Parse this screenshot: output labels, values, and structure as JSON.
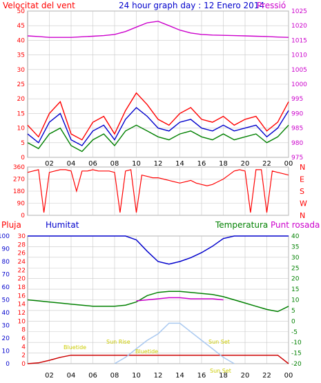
{
  "title": "24 hour graph day : 12 Enero 2014",
  "hours": [
    "02",
    "04",
    "06",
    "08",
    "10",
    "12",
    "14",
    "16",
    "18",
    "20",
    "22",
    "00"
  ],
  "colors": {
    "red": "#ff0000",
    "magenta": "#cc00cc",
    "blue": "#0000cc",
    "green": "#008000",
    "darkred": "#cc0000",
    "lightblue": "#a8c8f0",
    "yellow": "#cccc00",
    "grid": "#c8c8c8"
  },
  "chart_data": [
    {
      "type": "line",
      "panel": "wind-pressure",
      "labels": {
        "left": "Velocitat del vent",
        "right": "Pressió"
      },
      "left_ticks": [
        "0",
        "5",
        "10",
        "15",
        "20",
        "25",
        "30",
        "35",
        "40",
        "45",
        "50"
      ],
      "right_ticks": [
        "975",
        "980",
        "985",
        "990",
        "995",
        "1000",
        "1005",
        "1010",
        "1015",
        "1020",
        "1025"
      ],
      "ylim_left": [
        0,
        50
      ],
      "ylim_right": [
        975,
        1025
      ],
      "x": [
        0,
        1,
        2,
        3,
        4,
        5,
        6,
        7,
        8,
        9,
        10,
        11,
        12,
        13,
        14,
        15,
        16,
        17,
        18,
        19,
        20,
        21,
        22,
        23,
        24
      ],
      "series": [
        {
          "color": "red",
          "values": [
            11,
            7,
            15,
            19,
            8,
            6,
            12,
            14,
            8,
            16,
            22,
            18,
            13,
            11,
            15,
            17,
            13,
            12,
            14,
            11,
            13,
            14,
            9,
            12,
            19
          ]
        },
        {
          "color": "blue",
          "values": [
            8,
            5,
            12,
            15,
            6,
            4,
            9,
            11,
            6,
            13,
            17,
            14,
            10,
            9,
            12,
            13,
            10,
            9,
            11,
            9,
            10,
            11,
            7,
            10,
            16
          ]
        },
        {
          "color": "green",
          "values": [
            5,
            3,
            8,
            10,
            4,
            2,
            6,
            8,
            4,
            9,
            11,
            9,
            7,
            6,
            8,
            9,
            7,
            6,
            8,
            6,
            7,
            8,
            5,
            7,
            11
          ]
        },
        {
          "color": "magenta",
          "axis": "right",
          "values": [
            1016.5,
            1016.3,
            1016,
            1016,
            1016,
            1016.2,
            1016.4,
            1016.6,
            1017,
            1018,
            1019.5,
            1021,
            1021.5,
            1020,
            1018.5,
            1017.5,
            1017,
            1016.8,
            1016.7,
            1016.6,
            1016.5,
            1016.4,
            1016.3,
            1016.1,
            1016
          ]
        }
      ]
    },
    {
      "type": "scatter",
      "panel": "wind-direction",
      "left_ticks": [
        "0",
        "90",
        "180",
        "270",
        "360"
      ],
      "right_labels": [
        "N",
        "W",
        "S",
        "E",
        "N"
      ],
      "ylim": [
        0,
        360
      ],
      "x": [
        0,
        0.5,
        1,
        1.5,
        2,
        2.5,
        3,
        3.5,
        4,
        4.5,
        5,
        5.5,
        6,
        6.5,
        7,
        7.5,
        8,
        8.5,
        9,
        9.5,
        10,
        10.5,
        11,
        11.5,
        12,
        12.5,
        13,
        13.5,
        14,
        14.5,
        15,
        15.5,
        16,
        16.5,
        17,
        17.5,
        18,
        18.5,
        19,
        19.5,
        20,
        20.5,
        21,
        21.5,
        22,
        22.5,
        23,
        23.5,
        24
      ],
      "values": [
        320,
        330,
        340,
        20,
        320,
        330,
        340,
        340,
        330,
        180,
        330,
        330,
        340,
        330,
        330,
        330,
        320,
        20,
        330,
        340,
        20,
        300,
        290,
        280,
        280,
        270,
        260,
        250,
        240,
        250,
        260,
        240,
        230,
        220,
        230,
        250,
        270,
        300,
        330,
        340,
        330,
        20,
        340,
        340,
        20,
        330,
        320,
        310,
        300
      ]
    },
    {
      "type": "line",
      "panel": "rain-humidity-temperature",
      "labels": {
        "left": "Pluja",
        "center": "Humitat",
        "right1": "Temperatura",
        "right2": "Punt rosada"
      },
      "left_ticks": [
        "0",
        "10",
        "20",
        "30",
        "40",
        "50",
        "60",
        "70",
        "80",
        "90",
        "100"
      ],
      "inner_ticks": [
        "0",
        "2",
        "4",
        "6",
        "8",
        "10",
        "12",
        "14",
        "16",
        "18",
        "20",
        "22",
        "24",
        "26",
        "28",
        "30"
      ],
      "right_ticks": [
        "-20",
        "-15",
        "-10",
        "-5",
        "0",
        "5",
        "10",
        "15",
        "20",
        "25",
        "30",
        "35",
        "40"
      ],
      "ylim_inner": [
        0,
        30
      ],
      "ylim_right": [
        -20,
        40
      ],
      "ylim_left": [
        0,
        100
      ],
      "annotations": [
        "Bluetide",
        "Sun Rise",
        "Bluetide",
        "Sun Set",
        "Sun Set"
      ],
      "x": [
        0,
        1,
        2,
        3,
        4,
        5,
        6,
        7,
        8,
        9,
        10,
        11,
        12,
        13,
        14,
        15,
        16,
        17,
        18,
        19,
        20,
        21,
        22,
        23,
        24
      ],
      "series": [
        {
          "color": "blue",
          "axis": "left",
          "values": [
            100,
            100,
            100,
            100,
            100,
            100,
            100,
            100,
            100,
            100,
            97,
            88,
            80,
            78,
            80,
            83,
            87,
            92,
            98,
            100,
            100,
            100,
            100,
            100,
            100
          ]
        },
        {
          "color": "green",
          "axis": "right",
          "values": [
            10,
            9.5,
            9,
            8.5,
            8,
            7.5,
            7,
            7,
            7,
            7.5,
            9,
            12,
            13.5,
            14,
            14,
            13.5,
            13,
            12.5,
            11.5,
            10,
            8.5,
            7,
            5.5,
            4.5,
            7
          ]
        },
        {
          "color": "magenta",
          "axis": "right",
          "values": [
            null,
            null,
            null,
            null,
            null,
            null,
            null,
            null,
            null,
            null,
            9.5,
            10,
            10.5,
            11,
            11,
            10.5,
            10.5,
            10.5,
            10,
            null,
            null,
            null,
            null,
            null,
            null
          ]
        },
        {
          "color": "darkred",
          "axis": "inner",
          "values": [
            0,
            0.2,
            0.8,
            1.5,
            2,
            2,
            2,
            2,
            2,
            2,
            2,
            2,
            2,
            2,
            2,
            2,
            2,
            2,
            2,
            2,
            2,
            2,
            2,
            2,
            0
          ]
        },
        {
          "color": "lightblue",
          "axis": "right",
          "values": [
            null,
            null,
            null,
            null,
            null,
            null,
            null,
            null,
            -20,
            -17,
            -13,
            -9,
            -6,
            -1,
            -1,
            -5,
            -9,
            -13,
            -17,
            -20,
            null,
            null,
            null,
            null,
            null
          ]
        }
      ]
    }
  ]
}
